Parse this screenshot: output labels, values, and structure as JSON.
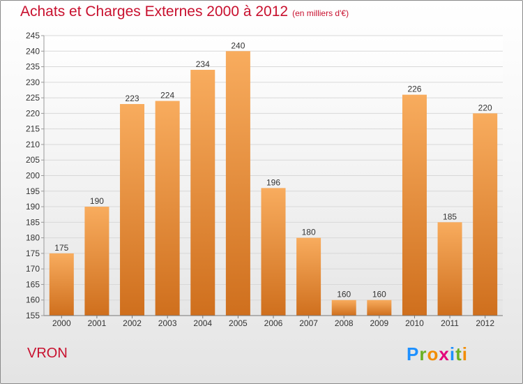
{
  "title": "Achats et Charges Externes 2000 à 2012",
  "unit_label": "(en milliers d'€)",
  "commune": "VRON",
  "logo": {
    "letters": [
      "P",
      "r",
      "o",
      "x",
      "i",
      "t",
      "i"
    ],
    "colors": [
      "#1e90ff",
      "#6ab023",
      "#f28c00",
      "#e3007a",
      "#1e90ff",
      "#6ab023",
      "#f28c00"
    ]
  },
  "colors": {
    "title": "#c8102e",
    "bar_light": "#f7a95a",
    "bar_dark": "#cc6e1e"
  },
  "chart_data": {
    "type": "bar",
    "categories": [
      "2000",
      "2001",
      "2002",
      "2003",
      "2004",
      "2005",
      "2006",
      "2007",
      "2008",
      "2009",
      "2010",
      "2011",
      "2012"
    ],
    "values": [
      175,
      190,
      223,
      224,
      234,
      240,
      196,
      180,
      160,
      160,
      226,
      185,
      220
    ],
    "ylim": [
      155,
      245
    ],
    "ytick_step": 5,
    "grid": true,
    "xlabel": "",
    "ylabel": ""
  }
}
